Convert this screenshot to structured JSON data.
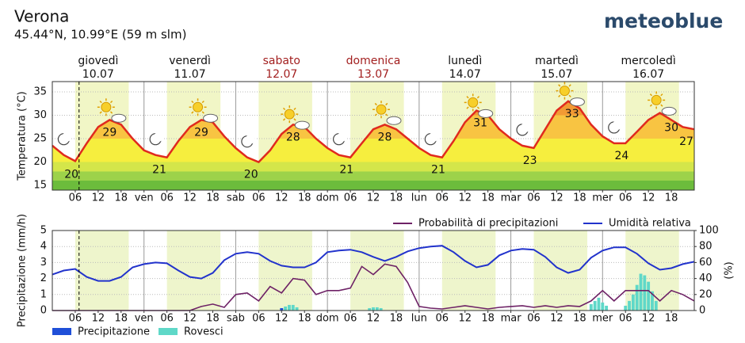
{
  "header": {
    "city": "Verona",
    "coords": "45.44°N, 10.99°E (59 m slm)",
    "brand": "meteoblue"
  },
  "days": [
    {
      "name": "giovedì",
      "date": "10.07",
      "weekend": false
    },
    {
      "name": "venerdì",
      "date": "11.07",
      "weekend": false
    },
    {
      "name": "sabato",
      "date": "12.07",
      "weekend": true
    },
    {
      "name": "domenica",
      "date": "13.07",
      "weekend": true
    },
    {
      "name": "lunedì",
      "date": "14.07",
      "weekend": false
    },
    {
      "name": "martedì",
      "date": "15.07",
      "weekend": false
    },
    {
      "name": "mercoledì",
      "date": "16.07",
      "weekend": false
    }
  ],
  "now": 7,
  "chart_data": [
    {
      "type": "line",
      "y_label": "Temperatura (°C)",
      "x": [
        0,
        3,
        6,
        9,
        12,
        15,
        18,
        21,
        24,
        27,
        30,
        33,
        36,
        39,
        42,
        45,
        48,
        51,
        54,
        57,
        60,
        63,
        66,
        69,
        72,
        75,
        78,
        81,
        84,
        87,
        90,
        93,
        96,
        99,
        102,
        105,
        108,
        111,
        114,
        117,
        120,
        123,
        126,
        129,
        132,
        135,
        138,
        141,
        144,
        147,
        150,
        153,
        156,
        159,
        162,
        165,
        168
      ],
      "xlim": [
        0,
        168
      ],
      "xticks": [
        {
          "value": 6,
          "label": "06"
        },
        {
          "value": 12,
          "label": "12"
        },
        {
          "value": 18,
          "label": "18"
        },
        {
          "value": 24,
          "label": "ven"
        },
        {
          "value": 30,
          "label": "06"
        },
        {
          "value": 36,
          "label": "12"
        },
        {
          "value": 42,
          "label": "18"
        },
        {
          "value": 48,
          "label": "sab"
        },
        {
          "value": 54,
          "label": "06"
        },
        {
          "value": 60,
          "label": "12"
        },
        {
          "value": 66,
          "label": "18"
        },
        {
          "value": 72,
          "label": "dom"
        },
        {
          "value": 78,
          "label": "06"
        },
        {
          "value": 84,
          "label": "12"
        },
        {
          "value": 90,
          "label": "18"
        },
        {
          "value": 96,
          "label": "lun"
        },
        {
          "value": 102,
          "label": "06"
        },
        {
          "value": 108,
          "label": "12"
        },
        {
          "value": 114,
          "label": "18"
        },
        {
          "value": 120,
          "label": "mar"
        },
        {
          "value": 126,
          "label": "06"
        },
        {
          "value": 132,
          "label": "12"
        },
        {
          "value": 138,
          "label": "18"
        },
        {
          "value": 144,
          "label": "mer"
        },
        {
          "value": 150,
          "label": "06"
        },
        {
          "value": 156,
          "label": "12"
        },
        {
          "value": 162,
          "label": "18"
        }
      ],
      "ylim": [
        14,
        37.2
      ],
      "yticks": [
        15,
        20,
        25,
        30,
        35
      ],
      "grid": true,
      "series": [
        {
          "color": "#e02a1e",
          "values": [
            23.5,
            21.5,
            20.2,
            24,
            27.5,
            29,
            28,
            25,
            22.5,
            21.5,
            21,
            24.5,
            27.5,
            29,
            28.5,
            25.5,
            23,
            21,
            20,
            22.5,
            26,
            28,
            27.5,
            25,
            23,
            21.5,
            21,
            24,
            27,
            28,
            27,
            25,
            23,
            21.5,
            21,
            24.5,
            28.5,
            31,
            30,
            27,
            25,
            23.5,
            23,
            27,
            31,
            33,
            31.5,
            28,
            25.5,
            24,
            24,
            26.5,
            29,
            30.5,
            29,
            27.5,
            27
          ]
        }
      ],
      "extremes": {
        "x": [
          5,
          15,
          28,
          39,
          52,
          63,
          77,
          87,
          101,
          112,
          125,
          136,
          149,
          162,
          168
        ],
        "values": [
          20,
          29,
          21,
          29,
          20,
          28,
          21,
          28,
          21,
          31,
          23,
          33,
          24,
          30,
          27
        ]
      }
    },
    {
      "type": "mixed",
      "y_label": "Precipitazione (mm/h)",
      "y2_label": "(%)",
      "x": [
        0,
        3,
        6,
        9,
        12,
        15,
        18,
        21,
        24,
        27,
        30,
        33,
        36,
        39,
        42,
        45,
        48,
        51,
        54,
        57,
        60,
        63,
        66,
        69,
        72,
        75,
        78,
        81,
        84,
        87,
        90,
        93,
        96,
        99,
        102,
        105,
        108,
        111,
        114,
        117,
        120,
        123,
        126,
        129,
        132,
        135,
        138,
        141,
        144,
        147,
        150,
        153,
        156,
        159,
        162,
        165,
        168
      ],
      "xlim": [
        0,
        168
      ],
      "xticks": [
        {
          "value": 6,
          "label": "06"
        },
        {
          "value": 12,
          "label": "12"
        },
        {
          "value": 18,
          "label": "18"
        },
        {
          "value": 24,
          "label": "ven"
        },
        {
          "value": 30,
          "label": "06"
        },
        {
          "value": 36,
          "label": "12"
        },
        {
          "value": 42,
          "label": "18"
        },
        {
          "value": 48,
          "label": "sab"
        },
        {
          "value": 54,
          "label": "06"
        },
        {
          "value": 60,
          "label": "12"
        },
        {
          "value": 66,
          "label": "18"
        },
        {
          "value": 72,
          "label": "dom"
        },
        {
          "value": 78,
          "label": "06"
        },
        {
          "value": 84,
          "label": "12"
        },
        {
          "value": 90,
          "label": "18"
        },
        {
          "value": 96,
          "label": "lun"
        },
        {
          "value": 102,
          "label": "06"
        },
        {
          "value": 108,
          "label": "12"
        },
        {
          "value": 114,
          "label": "18"
        },
        {
          "value": 120,
          "label": "mar"
        },
        {
          "value": 126,
          "label": "06"
        },
        {
          "value": 132,
          "label": "12"
        },
        {
          "value": 138,
          "label": "18"
        },
        {
          "value": 144,
          "label": "mer"
        },
        {
          "value": 150,
          "label": "06"
        },
        {
          "value": 156,
          "label": "12"
        },
        {
          "value": 162,
          "label": "18"
        }
      ],
      "ylim": [
        0,
        5
      ],
      "yticks": [
        0,
        1,
        2,
        3,
        4,
        5
      ],
      "y2lim": [
        0,
        100
      ],
      "y2ticks": [
        0,
        20,
        40,
        60,
        80,
        100
      ],
      "grid": true,
      "series": [
        {
          "name": "Probabilità di precipitazioni",
          "color": "#6e2266",
          "axis": "y2",
          "values": [
            0,
            0,
            0,
            0,
            0,
            0,
            0,
            0,
            0,
            0,
            0,
            0,
            0,
            5,
            8,
            4,
            20,
            22,
            12,
            30,
            22,
            40,
            38,
            20,
            25,
            25,
            28,
            55,
            45,
            58,
            55,
            35,
            5,
            3,
            2,
            4,
            6,
            4,
            2,
            4,
            5,
            6,
            4,
            6,
            4,
            6,
            5,
            12,
            25,
            12,
            25,
            25,
            25,
            12,
            25,
            20,
            12
          ]
        },
        {
          "name": "Umidità relativa",
          "color": "#2233cc",
          "axis": "y2",
          "values": [
            45,
            50,
            52,
            42,
            37,
            37,
            42,
            54,
            58,
            60,
            59,
            50,
            42,
            40,
            47,
            63,
            71,
            73,
            71,
            62,
            56,
            54,
            54,
            60,
            73,
            75,
            76,
            73,
            67,
            62,
            67,
            74,
            78,
            80,
            81,
            73,
            62,
            54,
            57,
            69,
            75,
            77,
            76,
            67,
            54,
            47,
            51,
            66,
            75,
            79,
            79,
            71,
            59,
            51,
            53,
            58,
            61
          ]
        }
      ],
      "bars": [
        {
          "name": "Precipitazione",
          "color": "#1f4fd8",
          "x": [
            60
          ],
          "values": [
            0.15
          ]
        },
        {
          "name": "Rovesci",
          "color": "#5fd8c8",
          "x": [
            61,
            62,
            63,
            64,
            83,
            84,
            85,
            86,
            141,
            142,
            143,
            144,
            145,
            150,
            151,
            152,
            153,
            154,
            155,
            156,
            157,
            158
          ],
          "values": [
            0.25,
            0.35,
            0.35,
            0.2,
            0.15,
            0.2,
            0.2,
            0.15,
            0.4,
            0.6,
            0.8,
            0.5,
            0.3,
            0.3,
            0.6,
            1.0,
            1.6,
            2.3,
            2.2,
            1.8,
            1.2,
            0.6
          ]
        }
      ]
    }
  ]
}
